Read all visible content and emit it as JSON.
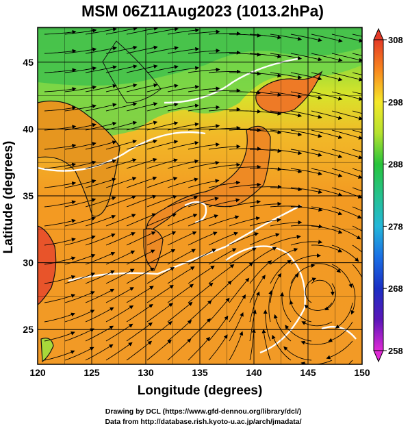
{
  "title": "MSM 06Z11Aug2023 (1013.2hPa)",
  "xlabel": "Longitude (degrees)",
  "ylabel": "Latitude (degrees)",
  "credits": [
    "Drawing by DCL (https://www.gfd-dennou.org/library/dcl/)",
    "Data from http://database.rish.kyoto-u.ac.jp/arch/jmadata/"
  ],
  "map": {
    "lon_range": [
      120,
      150
    ],
    "lat_range": [
      22.4,
      47.6
    ],
    "x_ticks": [
      "120",
      "125",
      "130",
      "135",
      "140",
      "145",
      "150"
    ],
    "y_ticks": [
      "25",
      "30",
      "35",
      "40",
      "45"
    ],
    "grid": true,
    "field": "temperature (K) with wind streamlines",
    "cyclone_center": {
      "lon": 146.0,
      "lat": 27.8
    }
  },
  "colorbar": {
    "labels": [
      "308",
      "298",
      "288",
      "278",
      "268",
      "258"
    ],
    "range": [
      258,
      308
    ],
    "colors": {
      "308": "#e43a27",
      "303": "#f98a1e",
      "298": "#f5e82a",
      "293": "#b6e22e",
      "288": "#27c43b",
      "283": "#25c28d",
      "278": "#24b7d9",
      "273": "#1a6fe5",
      "268": "#1a2fc4",
      "263": "#5a16b8",
      "258": "#e02ad6"
    }
  }
}
